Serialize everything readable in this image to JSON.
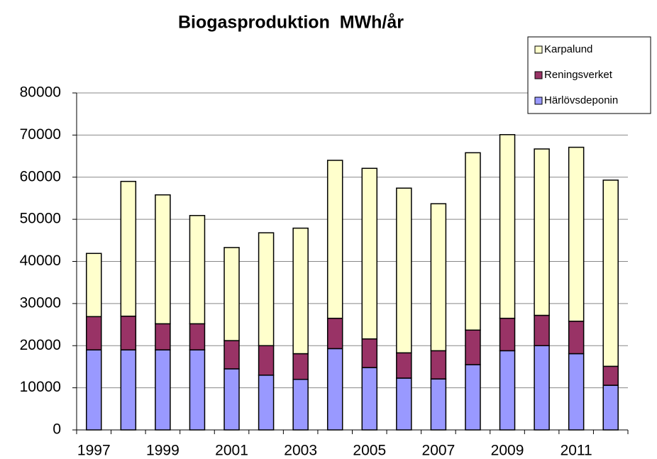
{
  "chart_data": {
    "type": "stacked_bar",
    "title": "Biogasproduktion  MWh/år",
    "categories": [
      "1997",
      null,
      "1999",
      null,
      "2001",
      null,
      "2003",
      null,
      "2005",
      null,
      "2007",
      null,
      "2009",
      null,
      "2011",
      null
    ],
    "series": [
      {
        "name": "Härlövsdeponin",
        "color": "#9999ff",
        "values": [
          19000,
          19000,
          19000,
          19000,
          14500,
          13000,
          12000,
          19300,
          14800,
          12300,
          12100,
          15500,
          18800,
          20000,
          18100,
          10600
        ]
      },
      {
        "name": "Reningsverket",
        "color": "#993366",
        "values": [
          7900,
          8000,
          6200,
          6200,
          6700,
          7000,
          6100,
          7200,
          6800,
          6000,
          6700,
          8200,
          7700,
          7200,
          7700,
          4500
        ]
      },
      {
        "name": "Karpalund",
        "color": "#ffffcc",
        "values": [
          15000,
          32000,
          30600,
          25700,
          22100,
          26800,
          29800,
          37500,
          40500,
          39100,
          34900,
          42100,
          43600,
          39500,
          41300,
          44200
        ]
      }
    ],
    "ylim": [
      0,
      80000
    ],
    "yticks": [
      0,
      10000,
      20000,
      30000,
      40000,
      50000,
      60000,
      70000,
      80000
    ],
    "grid": true,
    "legend": "top-right"
  }
}
